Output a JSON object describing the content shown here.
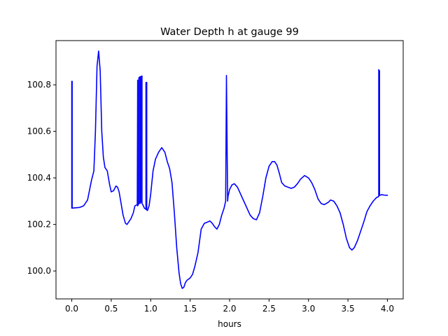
{
  "chart_data": {
    "type": "line",
    "title": "Water Depth h at gauge 99",
    "xlabel": "hours",
    "ylabel": "",
    "xlim": [
      -0.2,
      4.2
    ],
    "ylim": [
      99.88,
      100.99
    ],
    "x_ticks": [
      0.0,
      0.5,
      1.0,
      1.5,
      2.0,
      2.5,
      3.0,
      3.5,
      4.0
    ],
    "x_tick_labels": [
      "0.0",
      "0.5",
      "1.0",
      "1.5",
      "2.0",
      "2.5",
      "3.0",
      "3.5",
      "4.0"
    ],
    "y_ticks": [
      100.0,
      100.2,
      100.4,
      100.6,
      100.8
    ],
    "y_tick_labels": [
      "100.0",
      "100.2",
      "100.4",
      "100.6",
      "100.8"
    ],
    "grid": false,
    "series": [
      {
        "color": "#0000ff",
        "x": [
          0.0,
          0.0,
          0.005,
          0.005,
          0.1,
          0.15,
          0.2,
          0.25,
          0.28,
          0.3,
          0.32,
          0.34,
          0.36,
          0.38,
          0.4,
          0.42,
          0.45,
          0.48,
          0.5,
          0.53,
          0.56,
          0.58,
          0.6,
          0.63,
          0.65,
          0.68,
          0.7,
          0.72,
          0.75,
          0.78,
          0.8,
          0.83,
          0.835,
          0.835,
          0.85,
          0.85,
          0.865,
          0.865,
          0.875,
          0.875,
          0.89,
          0.89,
          0.9,
          0.92,
          0.94,
          0.94,
          0.95,
          0.95,
          0.96,
          0.98,
          1.0,
          1.03,
          1.06,
          1.1,
          1.14,
          1.18,
          1.21,
          1.24,
          1.27,
          1.3,
          1.33,
          1.36,
          1.38,
          1.4,
          1.42,
          1.44,
          1.46,
          1.48,
          1.5,
          1.53,
          1.56,
          1.6,
          1.64,
          1.68,
          1.72,
          1.75,
          1.78,
          1.81,
          1.84,
          1.87,
          1.9,
          1.93,
          1.95,
          1.96,
          1.96,
          1.975,
          1.975,
          1.98,
          2.0,
          2.03,
          2.06,
          2.1,
          2.14,
          2.18,
          2.22,
          2.26,
          2.3,
          2.34,
          2.38,
          2.42,
          2.46,
          2.5,
          2.54,
          2.57,
          2.6,
          2.63,
          2.66,
          2.7,
          2.74,
          2.78,
          2.82,
          2.86,
          2.9,
          2.95,
          3.0,
          3.04,
          3.08,
          3.12,
          3.16,
          3.2,
          3.25,
          3.28,
          3.32,
          3.36,
          3.4,
          3.44,
          3.48,
          3.52,
          3.55,
          3.58,
          3.62,
          3.66,
          3.7,
          3.74,
          3.78,
          3.82,
          3.86,
          3.89,
          3.89,
          3.9,
          3.9,
          3.93,
          3.96,
          4.0
        ],
        "y": [
          100.27,
          100.815,
          100.815,
          100.27,
          100.273,
          100.28,
          100.305,
          100.39,
          100.43,
          100.6,
          100.88,
          100.945,
          100.86,
          100.6,
          100.49,
          100.445,
          100.43,
          100.37,
          100.34,
          100.345,
          100.365,
          100.36,
          100.34,
          100.28,
          100.24,
          100.205,
          100.2,
          100.21,
          100.225,
          100.25,
          100.28,
          100.285,
          100.82,
          100.28,
          100.29,
          100.83,
          100.835,
          100.29,
          100.295,
          100.835,
          100.838,
          100.29,
          100.285,
          100.27,
          100.265,
          100.81,
          100.81,
          100.262,
          100.26,
          100.28,
          100.33,
          100.43,
          100.48,
          100.51,
          100.53,
          100.51,
          100.47,
          100.44,
          100.38,
          100.25,
          100.1,
          99.99,
          99.945,
          99.925,
          99.93,
          99.95,
          99.96,
          99.965,
          99.97,
          99.985,
          100.02,
          100.08,
          100.18,
          100.205,
          100.21,
          100.215,
          100.205,
          100.19,
          100.18,
          100.2,
          100.24,
          100.27,
          100.3,
          100.82,
          100.84,
          100.3,
          100.3,
          100.32,
          100.35,
          100.37,
          100.375,
          100.36,
          100.33,
          100.3,
          100.27,
          100.24,
          100.225,
          100.22,
          100.25,
          100.32,
          100.4,
          100.45,
          100.47,
          100.47,
          100.455,
          100.42,
          100.38,
          100.365,
          100.36,
          100.355,
          100.36,
          100.375,
          100.395,
          100.41,
          100.4,
          100.38,
          100.35,
          100.31,
          100.29,
          100.285,
          100.295,
          100.305,
          100.3,
          100.28,
          100.25,
          100.2,
          100.14,
          100.1,
          100.09,
          100.1,
          100.13,
          100.17,
          100.21,
          100.255,
          100.28,
          100.3,
          100.315,
          100.32,
          100.865,
          100.86,
          100.325,
          100.328,
          100.326,
          100.325
        ]
      }
    ]
  }
}
